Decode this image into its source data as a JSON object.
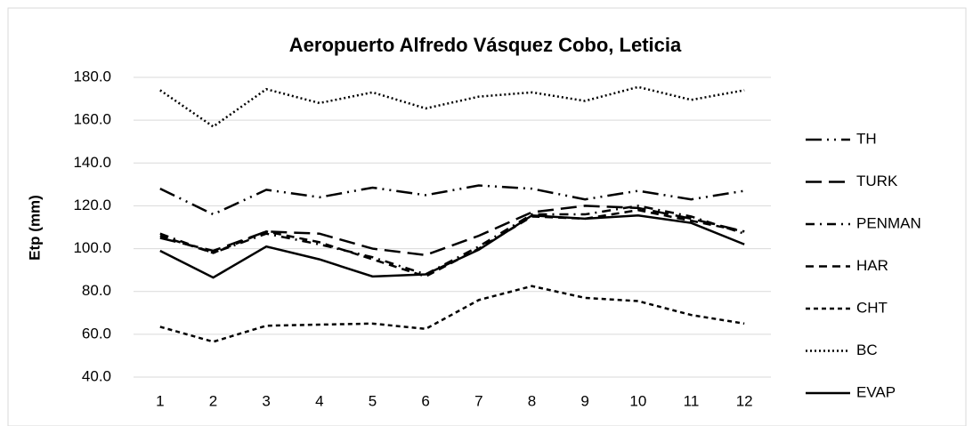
{
  "chart_data": {
    "type": "line",
    "title": "Aeropuerto Alfredo Vásquez Cobo, Leticia",
    "y_label": "Etp (mm)",
    "categories": [
      "1",
      "2",
      "3",
      "4",
      "5",
      "6",
      "7",
      "8",
      "9",
      "10",
      "11",
      "12"
    ],
    "ylim": [
      40,
      180
    ],
    "yticks": [
      {
        "value": 40,
        "label": "40.0"
      },
      {
        "value": 60,
        "label": "60.0"
      },
      {
        "value": 80,
        "label": "80.0"
      },
      {
        "value": 100,
        "label": "100.0"
      },
      {
        "value": 120,
        "label": "120.0"
      },
      {
        "value": 140,
        "label": "140.0"
      },
      {
        "value": 160,
        "label": "160.0"
      },
      {
        "value": 180,
        "label": "180.0"
      }
    ],
    "grid": true,
    "legend": "right",
    "series": [
      {
        "name": "TH",
        "color": "#000000",
        "dash": "long-dash-dot-dot",
        "values": [
          128,
          116,
          127.5,
          124,
          128.5,
          125,
          129.5,
          128,
          123,
          127,
          123,
          127
        ]
      },
      {
        "name": "TURK",
        "color": "#000000",
        "dash": "long-dash",
        "values": [
          105,
          99,
          108,
          107,
          100,
          97,
          106,
          117,
          120,
          119,
          114,
          108
        ]
      },
      {
        "name": "PENMAN",
        "color": "#000000",
        "dash": "dash-dot",
        "values": [
          107,
          98,
          107,
          102,
          96,
          88,
          101,
          116,
          116,
          120,
          115,
          107
        ]
      },
      {
        "name": "HAR",
        "color": "#000000",
        "dash": "dash",
        "values": [
          106,
          98,
          108,
          103,
          95,
          87,
          100,
          115,
          114,
          118,
          113,
          108
        ]
      },
      {
        "name": "CHT",
        "color": "#000000",
        "dash": "short-dash",
        "values": [
          63.5,
          56.5,
          64,
          64.5,
          65,
          62.5,
          76,
          82.5,
          77,
          75.5,
          69,
          65
        ]
      },
      {
        "name": "BC",
        "color": "#000000",
        "dash": "dot",
        "values": [
          174,
          157,
          174.5,
          168,
          173,
          165.5,
          171,
          173,
          169,
          175.5,
          169.5,
          174
        ]
      },
      {
        "name": "EVAP",
        "color": "#000000",
        "dash": "solid",
        "values": [
          99,
          86.5,
          101,
          95,
          87,
          88,
          99.5,
          115.5,
          114,
          115.5,
          112,
          102
        ]
      }
    ]
  }
}
